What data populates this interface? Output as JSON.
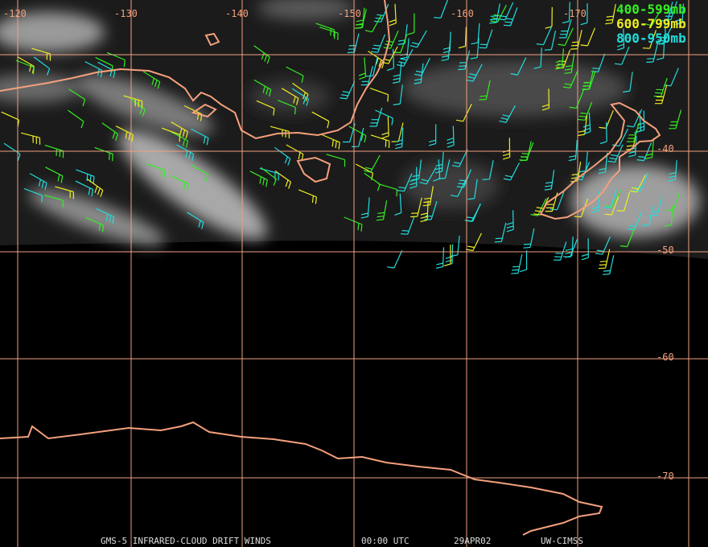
{
  "map": {
    "longitude_labels": [
      "-120",
      "-130",
      "-140",
      "-150",
      "-160",
      "-170"
    ],
    "latitude_labels": [
      "-40",
      "-50",
      "-60",
      "-70"
    ],
    "legend": [
      {
        "label": "400-599mb",
        "color": "#33ee22"
      },
      {
        "label": "600-799mb",
        "color": "#eeee22"
      },
      {
        "label": "800-950mb",
        "color": "#22dddd"
      }
    ],
    "footer": [
      "GMS-5 INFRARED-CLOUD DRIFT WINDS",
      "00:00 UTC",
      "29APR02",
      "UW-CIMSS"
    ]
  }
}
